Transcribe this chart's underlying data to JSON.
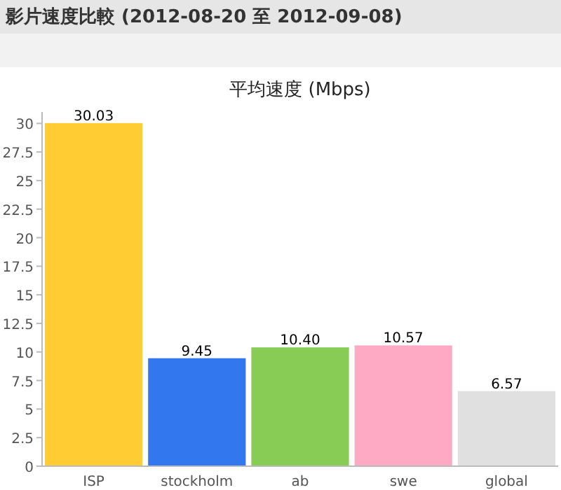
{
  "chart_data": {
    "type": "bar",
    "title": "影片速度比較 (2012-08-20 至 2012-09-08)",
    "subtitle": "平均速度 (Mbps)",
    "categories": [
      "ISP",
      "stockholm",
      "ab",
      "swe",
      "global"
    ],
    "values": [
      30.03,
      9.45,
      10.4,
      10.57,
      6.57
    ],
    "colors": [
      "#ffcc33",
      "#3377ee",
      "#88cc55",
      "#ffaac4",
      "#e0e0e0"
    ],
    "value_labels": [
      "30.03",
      "9.45",
      "10.40",
      "10.57",
      "6.57"
    ],
    "ylim": [
      0,
      31
    ],
    "yticks": [
      0,
      2.5,
      5,
      7.5,
      10,
      12.5,
      15,
      17.5,
      20,
      22.5,
      25,
      27.5,
      30
    ]
  }
}
